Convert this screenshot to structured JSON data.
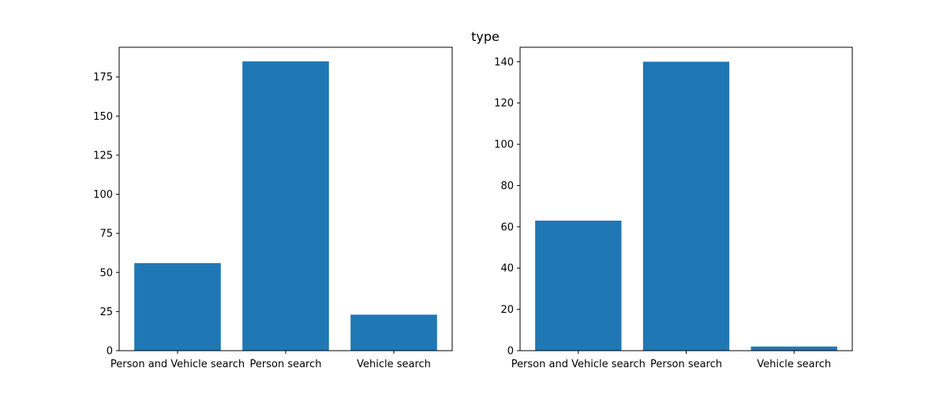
{
  "figure": {
    "suptitle": "type"
  },
  "chart_data": [
    {
      "type": "bar",
      "categories": [
        "Person and Vehicle search",
        "Person search",
        "Vehicle search"
      ],
      "values": [
        56,
        185,
        23
      ],
      "color": "#1f77b4",
      "ylim": [
        0,
        194
      ],
      "yticks": [
        0,
        25,
        50,
        75,
        100,
        125,
        150,
        175
      ],
      "grid": false
    },
    {
      "type": "bar",
      "categories": [
        "Person and Vehicle search",
        "Person search",
        "Vehicle search"
      ],
      "values": [
        63,
        140,
        2
      ],
      "color": "#1f77b4",
      "ylim": [
        0,
        147
      ],
      "yticks": [
        0,
        20,
        40,
        60,
        80,
        100,
        120,
        140
      ],
      "grid": false
    }
  ]
}
